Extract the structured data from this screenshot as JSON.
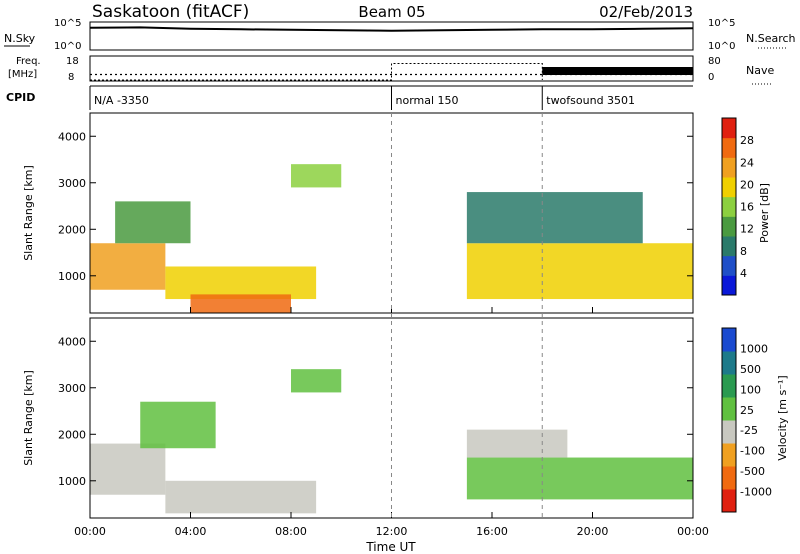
{
  "header": {
    "station": "Saskatoon (fitACF)",
    "beam": "Beam 05",
    "date": "02/Feb/2013"
  },
  "noise_panel": {
    "left_label": "N.Sky",
    "right_label": "N.Search",
    "ticks_left": [
      "10^5",
      "10^0"
    ],
    "ticks_right": [
      "10^5",
      "10^0"
    ]
  },
  "freq_panel": {
    "left_label_1": "Freq.",
    "left_label_2": "[MHz]",
    "right_label": "Nave",
    "ticks_left": [
      "18",
      "8"
    ],
    "ticks_right": [
      "80",
      "0"
    ]
  },
  "cpid_panel": {
    "label": "CPID",
    "segments": [
      {
        "label": "N/A -3350",
        "start_hour": 0
      },
      {
        "label": "normal 150",
        "start_hour": 12
      },
      {
        "label": "twofsound 3501",
        "start_hour": 18
      }
    ]
  },
  "x_axis": {
    "label": "Time UT",
    "ticks": [
      "00:00",
      "04:00",
      "08:00",
      "12:00",
      "16:00",
      "20:00",
      "00:00"
    ],
    "range_hours": [
      0,
      24
    ]
  },
  "power_panel": {
    "ylabel": "Slant Range [km]",
    "yticks": [
      "1000",
      "2000",
      "3000",
      "4000"
    ],
    "colorbar_label": "Power [dB]",
    "colorbar_ticks": [
      "4",
      "8",
      "12",
      "16",
      "20",
      "24",
      "28"
    ],
    "colors": [
      "#0a18d8",
      "#1f4fc8",
      "#2a7a6a",
      "#4a9a40",
      "#8cd040",
      "#f0d000",
      "#f0a020",
      "#f06a10",
      "#e02010"
    ]
  },
  "velocity_panel": {
    "ylabel": "Slant Range [km]",
    "yticks": [
      "1000",
      "2000",
      "3000",
      "4000"
    ],
    "colorbar_label": "Velocity [m s⁻¹]",
    "colorbar_ticks": [
      "1000",
      "500",
      "100",
      "25",
      "-25",
      "-100",
      "-500",
      "-1000"
    ],
    "colors": [
      "#1a4ad0",
      "#1d7a8a",
      "#2a9a50",
      "#60c040",
      "#c8c8c0",
      "#f0a020",
      "#f06a10",
      "#e02010"
    ]
  },
  "chart_data": [
    {
      "type": "line",
      "title": "N.Sky / N.Search",
      "x_hours": [
        0,
        2,
        4,
        6,
        8,
        10,
        12,
        14,
        16,
        18,
        20,
        22,
        24
      ],
      "series": [
        {
          "name": "N.Sky",
          "values_log10": [
            4.2,
            4.3,
            4.0,
            3.9,
            3.8,
            3.7,
            3.6,
            3.7,
            3.8,
            3.9,
            3.9,
            4.0,
            4.1
          ]
        }
      ]
    },
    {
      "type": "line",
      "title": "Freq. [MHz] / Nave",
      "x_hours": [
        0,
        12,
        12,
        18,
        18,
        24
      ],
      "series": [
        {
          "name": "Freq.",
          "values": [
            10.5,
            10.5,
            10.5,
            10.5,
            10.5,
            10.5
          ]
        },
        {
          "name": "Nave",
          "values": [
            0,
            0,
            60,
            60,
            0,
            0
          ]
        }
      ]
    },
    {
      "type": "heatmap",
      "title": "Power [dB]",
      "xlabel": "Time UT",
      "ylabel": "Slant Range [km]",
      "xlim": [
        0,
        24
      ],
      "ylim": [
        200,
        4500
      ],
      "zlim": [
        0,
        30
      ],
      "regions": [
        {
          "t0": 0,
          "t1": 3,
          "r0": 700,
          "r1": 1700,
          "value": 24
        },
        {
          "t0": 1,
          "t1": 4,
          "r0": 1700,
          "r1": 2600,
          "value": 10
        },
        {
          "t0": 3,
          "t1": 9,
          "r0": 500,
          "r1": 1200,
          "value": 18
        },
        {
          "t0": 4,
          "t1": 8,
          "r0": 200,
          "r1": 600,
          "value": 26
        },
        {
          "t0": 8,
          "t1": 10,
          "r0": 2900,
          "r1": 3400,
          "value": 14
        },
        {
          "t0": 15,
          "t1": 24,
          "r0": 500,
          "r1": 1700,
          "value": 20
        },
        {
          "t0": 15,
          "t1": 22,
          "r0": 1700,
          "r1": 2800,
          "value": 8
        }
      ]
    },
    {
      "type": "heatmap",
      "title": "Velocity [m s⁻¹]",
      "xlabel": "Time UT",
      "ylabel": "Slant Range [km]",
      "xlim": [
        0,
        24
      ],
      "ylim": [
        200,
        4500
      ],
      "zlim": [
        -1000,
        1000
      ],
      "regions": [
        {
          "t0": 0,
          "t1": 3,
          "r0": 700,
          "r1": 1800,
          "value": -100
        },
        {
          "t0": 2,
          "t1": 5,
          "r0": 1700,
          "r1": 2700,
          "value": 0
        },
        {
          "t0": 3,
          "t1": 9,
          "r0": 300,
          "r1": 1000,
          "value": -100
        },
        {
          "t0": 8,
          "t1": 10,
          "r0": 2900,
          "r1": 3400,
          "value": 0
        },
        {
          "t0": 15,
          "t1": 24,
          "r0": 600,
          "r1": 1500,
          "value": 0
        },
        {
          "t0": 15,
          "t1": 19,
          "r0": 1500,
          "r1": 2100,
          "value": -100
        }
      ]
    }
  ]
}
